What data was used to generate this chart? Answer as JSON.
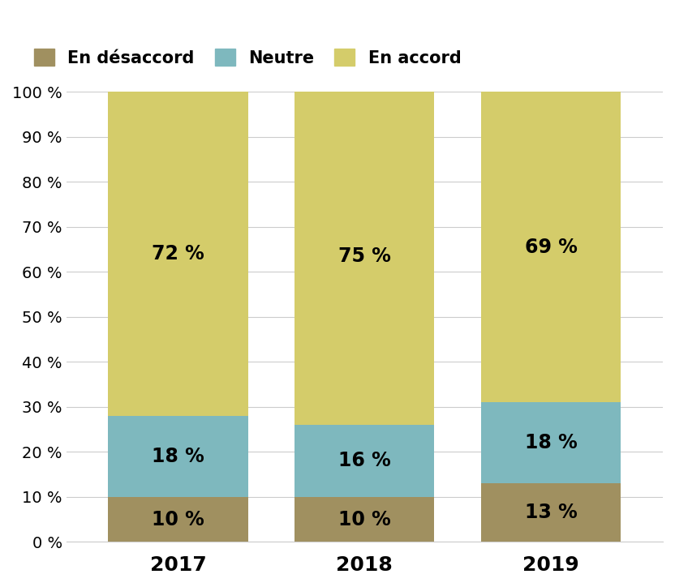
{
  "years": [
    "2017",
    "2018",
    "2019"
  ],
  "desaccord": [
    10,
    10,
    13
  ],
  "neutre": [
    18,
    16,
    18
  ],
  "accord": [
    72,
    75,
    69
  ],
  "color_desaccord": "#a09060",
  "color_neutre": "#7eb8be",
  "color_accord": "#d4cc6a",
  "label_desaccord": "En désaccord",
  "label_neutre": "Neutre",
  "label_accord": "En accord",
  "yticks": [
    0,
    10,
    20,
    30,
    40,
    50,
    60,
    70,
    80,
    90,
    100
  ],
  "bar_width": 0.75,
  "tick_fontsize": 14,
  "legend_fontsize": 15,
  "annotation_fontsize": 17,
  "xtick_fontsize": 18
}
